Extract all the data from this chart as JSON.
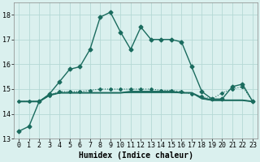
{
  "title": "",
  "xlabel": "Humidex (Indice chaleur)",
  "x": [
    0,
    1,
    2,
    3,
    4,
    5,
    6,
    7,
    8,
    9,
    10,
    11,
    12,
    13,
    14,
    15,
    16,
    17,
    18,
    19,
    20,
    21,
    22,
    23
  ],
  "lines": [
    {
      "y": [
        13.3,
        13.5,
        14.5,
        14.8,
        15.3,
        15.8,
        15.9,
        16.6,
        17.9,
        18.1,
        17.3,
        16.6,
        17.5,
        17.0,
        17.0,
        17.0,
        16.9,
        15.9,
        14.9,
        14.6,
        14.6,
        15.1,
        15.2,
        14.5
      ],
      "color": "#1a6b5e",
      "linewidth": 1.0,
      "marker": "D",
      "markersize": 2.5,
      "linestyle": "-"
    },
    {
      "y": [
        14.5,
        14.5,
        14.5,
        14.75,
        14.85,
        14.85,
        14.85,
        14.85,
        14.85,
        14.85,
        14.85,
        14.9,
        14.9,
        14.9,
        14.9,
        14.9,
        14.85,
        14.85,
        14.65,
        14.55,
        14.55,
        14.55,
        14.55,
        14.5
      ],
      "color": "#1a6b5e",
      "linewidth": 1.4,
      "marker": null,
      "markersize": 0,
      "linestyle": "-"
    },
    {
      "y": [
        14.5,
        14.5,
        14.5,
        14.75,
        14.9,
        14.9,
        14.9,
        14.95,
        15.0,
        15.0,
        15.0,
        15.0,
        15.0,
        15.0,
        14.95,
        14.95,
        14.9,
        14.8,
        14.7,
        14.6,
        14.85,
        15.0,
        15.1,
        14.5
      ],
      "color": "#1a6b5e",
      "linewidth": 0.8,
      "marker": "D",
      "markersize": 2.0,
      "linestyle": ":"
    },
    {
      "y": [
        14.5,
        14.5,
        14.5,
        14.75,
        14.85,
        14.85,
        14.85,
        14.85,
        14.85,
        14.85,
        14.85,
        14.85,
        14.85,
        14.85,
        14.85,
        14.85,
        14.85,
        14.85,
        14.6,
        14.55,
        14.55,
        14.55,
        14.55,
        14.5
      ],
      "color": "#1a6b5e",
      "linewidth": 0.7,
      "marker": null,
      "markersize": 0,
      "linestyle": "-"
    }
  ],
  "ylim": [
    13.0,
    18.5
  ],
  "xlim": [
    -0.5,
    23.5
  ],
  "yticks": [
    13,
    14,
    15,
    16,
    17,
    18
  ],
  "xtick_labels": [
    "0",
    "1",
    "2",
    "3",
    "4",
    "5",
    "6",
    "7",
    "8",
    "9",
    "10",
    "11",
    "12",
    "13",
    "14",
    "15",
    "16",
    "17",
    "18",
    "19",
    "20",
    "21",
    "22",
    "23"
  ],
  "bg_color": "#daf0ee",
  "grid_color": "#b5d9d5",
  "line_color": "#1a6b5e",
  "xlabel_fontsize": 7,
  "tick_fontsize": 6
}
